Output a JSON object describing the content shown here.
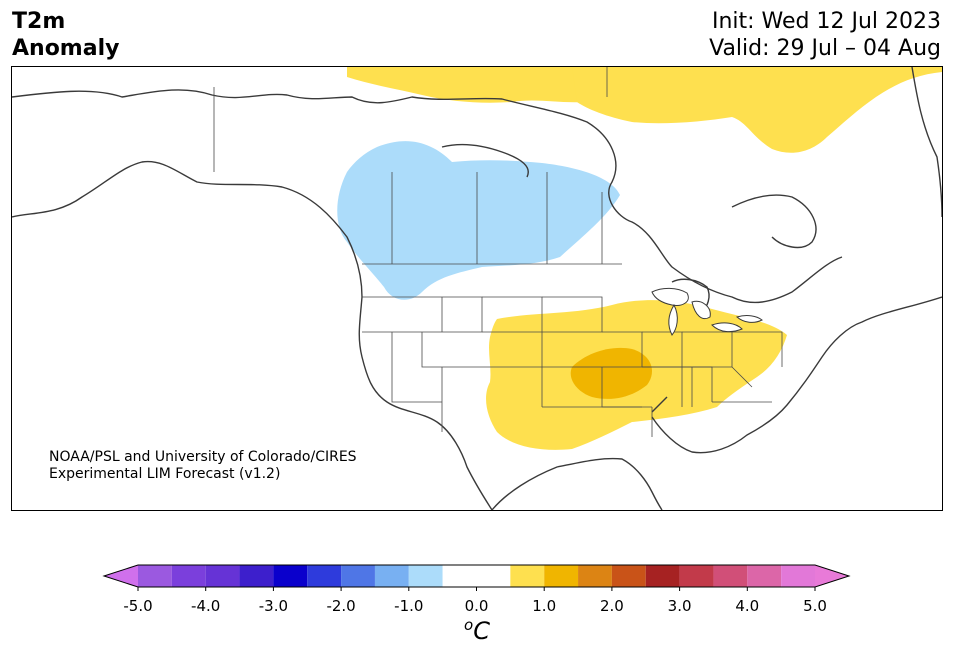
{
  "title": {
    "line1": "T2m",
    "line2": "Anomaly"
  },
  "forecast": {
    "init": "Init: Wed 12 Jul 2023",
    "valid": "Valid: 29 Jul – 04 Aug"
  },
  "credit": {
    "line1": "NOAA/PSL and University of Colorado/CIRES",
    "line2": "Experimental LIM Forecast (v1.2)"
  },
  "colorbar": {
    "unit_superscript": "o",
    "unit": "C",
    "tick_labels": [
      "-5.0",
      "-4.0",
      "-3.0",
      "-2.0",
      "-1.0",
      "0.0",
      "1.0",
      "2.0",
      "3.0",
      "4.0",
      "5.0"
    ],
    "ticks": [
      -5.0,
      -4.0,
      -3.0,
      -2.0,
      -1.0,
      0.0,
      1.0,
      2.0,
      3.0,
      4.0,
      5.0
    ],
    "bins": [
      {
        "range": [
          -5.0,
          -4.5
        ],
        "color": "#9b59e0"
      },
      {
        "range": [
          -4.5,
          -4.0
        ],
        "color": "#7b3fdc"
      },
      {
        "range": [
          -4.0,
          -3.5
        ],
        "color": "#6633d6"
      },
      {
        "range": [
          -3.5,
          -3.0
        ],
        "color": "#3d1fcc"
      },
      {
        "range": [
          -3.0,
          -2.5
        ],
        "color": "#0a00cc"
      },
      {
        "range": [
          -2.5,
          -2.0
        ],
        "color": "#2e3bdc"
      },
      {
        "range": [
          -2.0,
          -1.5
        ],
        "color": "#4f76e6"
      },
      {
        "range": [
          -1.5,
          -1.0
        ],
        "color": "#78b0f2"
      },
      {
        "range": [
          -1.0,
          -0.5
        ],
        "color": "#acdcfa"
      },
      {
        "range": [
          -0.5,
          0.5
        ],
        "color": "#ffffff"
      },
      {
        "range": [
          0.5,
          1.0
        ],
        "color": "#fee04f"
      },
      {
        "range": [
          1.0,
          1.5
        ],
        "color": "#f0b500"
      },
      {
        "range": [
          1.5,
          2.0
        ],
        "color": "#dc8414"
      },
      {
        "range": [
          2.0,
          2.5
        ],
        "color": "#c95318"
      },
      {
        "range": [
          2.5,
          3.0
        ],
        "color": "#a62222"
      },
      {
        "range": [
          3.0,
          3.5
        ],
        "color": "#c23a4a"
      },
      {
        "range": [
          3.5,
          4.0
        ],
        "color": "#d14f78"
      },
      {
        "range": [
          4.0,
          4.5
        ],
        "color": "#dc66a8"
      },
      {
        "range": [
          4.5,
          5.0
        ],
        "color": "#e278d8"
      }
    ],
    "extend_low_color": "#d070ec",
    "extend_high_color": "#e87ad8"
  },
  "anomaly_regions": [
    {
      "name": "central-canada-cool",
      "level": -1.0,
      "color": "#acdcfa"
    },
    {
      "name": "arctic-warm",
      "level": 1.0,
      "color": "#fee04f"
    },
    {
      "name": "central-eastern-us-warm",
      "level": 1.0,
      "color": "#fee04f"
    },
    {
      "name": "south-central-us-warmer",
      "level": 1.5,
      "color": "#f0b500"
    }
  ]
}
